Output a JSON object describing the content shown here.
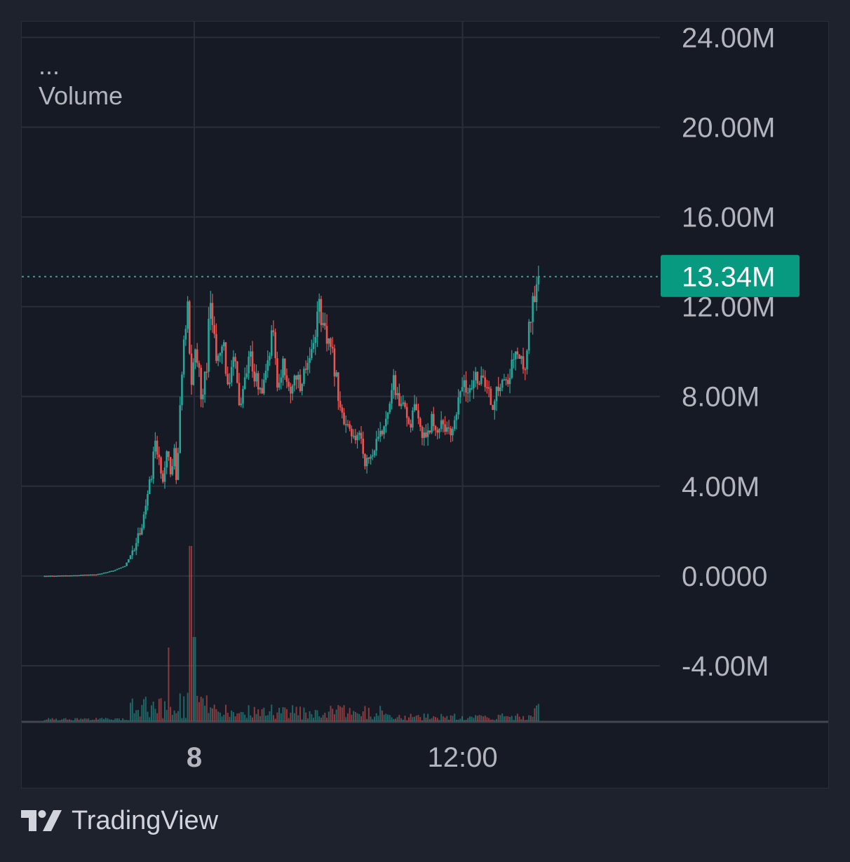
{
  "legend": {
    "ellipsis": "...",
    "title": "Volume"
  },
  "footer": {
    "brand": "TradingView"
  },
  "colors": {
    "up": "#26a69a",
    "down": "#ef5350",
    "price_tag_bg": "#089981",
    "grid": "#2a2e39",
    "background": "#161a25",
    "text": "#b2b5be"
  },
  "chart_data": {
    "type": "candlestick",
    "y_ticks": [
      {
        "value": 24000000,
        "label": "24.00M"
      },
      {
        "value": 20000000,
        "label": "20.00M"
      },
      {
        "value": 16000000,
        "label": "16.00M"
      },
      {
        "value": 12000000,
        "label": "12.00M"
      },
      {
        "value": 8000000,
        "label": "8.00M"
      },
      {
        "value": 4000000,
        "label": "4.00M"
      },
      {
        "value": 0,
        "label": "0.0000"
      },
      {
        "value": -4000000,
        "label": "-4.00M"
      }
    ],
    "x_ticks": [
      {
        "label": "8",
        "bold": true,
        "frac": 0.27
      },
      {
        "label": "12:00",
        "bold": false,
        "frac": 0.69
      }
    ],
    "ylim": [
      -6500000,
      24700000
    ],
    "last_price": 13340000,
    "last_price_label": "13.34M",
    "price_path": [
      [
        0.0,
        0
      ],
      [
        0.06,
        0.03
      ],
      [
        0.1,
        0.08
      ],
      [
        0.13,
        0.25
      ],
      [
        0.15,
        0.45
      ],
      [
        0.162,
        1.0
      ],
      [
        0.18,
        2.2
      ],
      [
        0.19,
        3.4
      ],
      [
        0.2,
        4.7
      ],
      [
        0.205,
        6.3
      ],
      [
        0.21,
        5.2
      ],
      [
        0.22,
        4.3
      ],
      [
        0.225,
        5.8
      ],
      [
        0.235,
        4.6
      ],
      [
        0.24,
        5.6
      ],
      [
        0.245,
        4.1
      ],
      [
        0.25,
        7.2
      ],
      [
        0.255,
        9.5
      ],
      [
        0.265,
        12.0
      ],
      [
        0.27,
        8.4
      ],
      [
        0.28,
        10.3
      ],
      [
        0.285,
        9.0
      ],
      [
        0.29,
        8.0
      ],
      [
        0.3,
        9.6
      ],
      [
        0.305,
        13.2
      ],
      [
        0.31,
        11.0
      ],
      [
        0.32,
        9.5
      ],
      [
        0.33,
        10.2
      ],
      [
        0.34,
        8.2
      ],
      [
        0.35,
        9.8
      ],
      [
        0.36,
        7.4
      ],
      [
        0.37,
        8.7
      ],
      [
        0.38,
        10.0
      ],
      [
        0.385,
        8.2
      ],
      [
        0.39,
        9.0
      ],
      [
        0.4,
        7.8
      ],
      [
        0.41,
        9.4
      ],
      [
        0.42,
        11.0
      ],
      [
        0.425,
        9.2
      ],
      [
        0.43,
        8.3
      ],
      [
        0.44,
        9.6
      ],
      [
        0.45,
        8.0
      ],
      [
        0.46,
        9.1
      ],
      [
        0.47,
        8.3
      ],
      [
        0.48,
        9.5
      ],
      [
        0.49,
        10.0
      ],
      [
        0.5,
        11.3
      ],
      [
        0.505,
        12.4
      ],
      [
        0.51,
        11.1
      ],
      [
        0.52,
        10.4
      ],
      [
        0.53,
        9.7
      ],
      [
        0.54,
        8.1
      ],
      [
        0.55,
        6.7
      ],
      [
        0.56,
        6.4
      ],
      [
        0.57,
        5.9
      ],
      [
        0.58,
        6.5
      ],
      [
        0.585,
        5.5
      ],
      [
        0.59,
        5.0
      ],
      [
        0.6,
        5.4
      ],
      [
        0.61,
        5.9
      ],
      [
        0.62,
        6.4
      ],
      [
        0.63,
        7.6
      ],
      [
        0.64,
        8.6
      ],
      [
        0.65,
        7.8
      ],
      [
        0.66,
        7.3
      ],
      [
        0.67,
        6.8
      ],
      [
        0.68,
        7.4
      ],
      [
        0.69,
        6.3
      ],
      [
        0.7,
        6.4
      ],
      [
        0.71,
        6.9
      ],
      [
        0.72,
        6.5
      ],
      [
        0.73,
        7.0
      ],
      [
        0.74,
        6.2
      ],
      [
        0.75,
        6.8
      ],
      [
        0.76,
        7.8
      ],
      [
        0.77,
        8.6
      ],
      [
        0.78,
        8.0
      ],
      [
        0.79,
        9.0
      ],
      [
        0.8,
        8.7
      ],
      [
        0.81,
        8.4
      ],
      [
        0.82,
        7.6
      ],
      [
        0.83,
        8.2
      ],
      [
        0.84,
        8.9
      ],
      [
        0.85,
        8.3
      ],
      [
        0.86,
        10.0
      ],
      [
        0.87,
        9.6
      ],
      [
        0.88,
        9.3
      ],
      [
        0.89,
        11.6
      ],
      [
        0.9,
        12.6
      ],
      [
        0.905,
        13.34
      ]
    ]
  }
}
